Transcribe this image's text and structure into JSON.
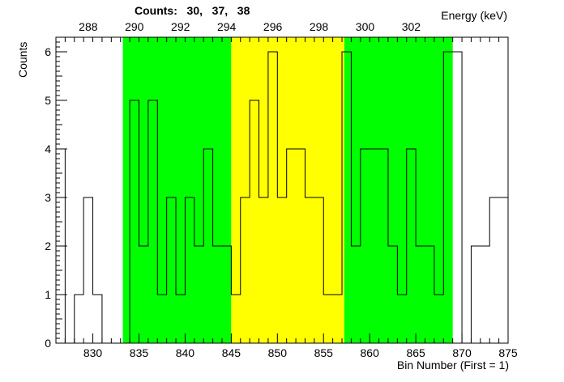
{
  "title": "Counts:   30,   37,   38",
  "chart_data": {
    "type": "histogram",
    "xlabel_bottom": "Bin Number (First = 1)",
    "xlabel_top": "Energy (keV)",
    "ylabel": "Counts",
    "xlim": [
      826,
      875
    ],
    "ylim": [
      0,
      6.3
    ],
    "top_axis_keV_per_bin": 0.4,
    "top_axis_origin": {
      "bin": 826,
      "keV": 286.6
    },
    "bottom_ticks": [
      830,
      835,
      840,
      845,
      850,
      855,
      860,
      865,
      870,
      875
    ],
    "top_ticks": [
      288,
      290,
      292,
      294,
      296,
      298,
      300,
      302
    ],
    "y_ticks": [
      0,
      1,
      2,
      3,
      4,
      5,
      6
    ],
    "regions": [
      {
        "name": "left background",
        "from": 833.25,
        "to": 845,
        "color": "#00ff00"
      },
      {
        "name": "peak",
        "from": 845,
        "to": 857.25,
        "color": "#ffff00"
      },
      {
        "name": "right background",
        "from": 857.25,
        "to": 869,
        "color": "#00ff00"
      }
    ],
    "bins": [
      {
        "x": 826,
        "y": 4
      },
      {
        "x": 827,
        "y": 0
      },
      {
        "x": 828,
        "y": 1
      },
      {
        "x": 829,
        "y": 3
      },
      {
        "x": 830,
        "y": 1
      },
      {
        "x": 831,
        "y": 0
      },
      {
        "x": 832,
        "y": 0
      },
      {
        "x": 833,
        "y": 0
      },
      {
        "x": 834,
        "y": 5
      },
      {
        "x": 835,
        "y": 2
      },
      {
        "x": 836,
        "y": 5
      },
      {
        "x": 837,
        "y": 1
      },
      {
        "x": 838,
        "y": 3
      },
      {
        "x": 839,
        "y": 1
      },
      {
        "x": 840,
        "y": 3
      },
      {
        "x": 841,
        "y": 2
      },
      {
        "x": 842,
        "y": 4
      },
      {
        "x": 843,
        "y": 2
      },
      {
        "x": 844,
        "y": 2
      },
      {
        "x": 845,
        "y": 1
      },
      {
        "x": 846,
        "y": 3
      },
      {
        "x": 847,
        "y": 5
      },
      {
        "x": 848,
        "y": 3
      },
      {
        "x": 849,
        "y": 6
      },
      {
        "x": 850,
        "y": 3
      },
      {
        "x": 851,
        "y": 4
      },
      {
        "x": 852,
        "y": 4
      },
      {
        "x": 853,
        "y": 3
      },
      {
        "x": 854,
        "y": 3
      },
      {
        "x": 855,
        "y": 1
      },
      {
        "x": 856,
        "y": 1
      },
      {
        "x": 857,
        "y": 6
      },
      {
        "x": 858,
        "y": 2
      },
      {
        "x": 859,
        "y": 4
      },
      {
        "x": 860,
        "y": 4
      },
      {
        "x": 861,
        "y": 4
      },
      {
        "x": 862,
        "y": 2
      },
      {
        "x": 863,
        "y": 1
      },
      {
        "x": 864,
        "y": 4
      },
      {
        "x": 865,
        "y": 2
      },
      {
        "x": 866,
        "y": 2
      },
      {
        "x": 867,
        "y": 1
      },
      {
        "x": 868,
        "y": 6
      },
      {
        "x": 869,
        "y": 6
      },
      {
        "x": 870,
        "y": 0
      },
      {
        "x": 871,
        "y": 2
      },
      {
        "x": 872,
        "y": 2
      },
      {
        "x": 873,
        "y": 3
      },
      {
        "x": 874,
        "y": 3
      }
    ],
    "grid": false,
    "colors": {
      "line": "#000000",
      "frame": "#000000"
    }
  }
}
